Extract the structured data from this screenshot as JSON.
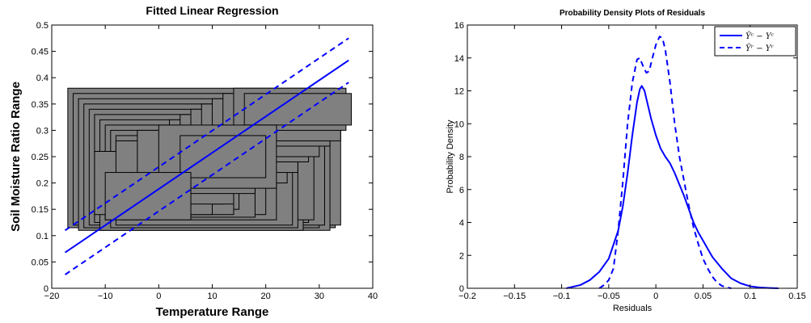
{
  "chart_data": [
    {
      "type": "scatter",
      "title": "Fitted Linear Regression",
      "xlabel": "Temperature Range",
      "ylabel": "Soil Moisture Ratio Range",
      "xlim": [
        -20,
        40
      ],
      "ylim": [
        0,
        0.5
      ],
      "xticks": [
        "−20",
        "−10",
        "0",
        "10",
        "20",
        "30",
        "40"
      ],
      "yticks": [
        "0",
        "0.05",
        "0.1",
        "0.15",
        "0.2",
        "0.25",
        "0.3",
        "0.35",
        "0.4",
        "0.45",
        "0.5"
      ],
      "grid": false,
      "rect_color": "#808080",
      "line_color": "#0000ff",
      "interval_rects": [
        [
          -17,
          33,
          0.115,
          0.38
        ],
        [
          -16,
          34,
          0.12,
          0.37
        ],
        [
          -15,
          32,
          0.11,
          0.36
        ],
        [
          -14,
          30,
          0.115,
          0.35
        ],
        [
          -13,
          31,
          0.12,
          0.34
        ],
        [
          -12,
          28,
          0.125,
          0.33
        ],
        [
          -11,
          27,
          0.11,
          0.32
        ],
        [
          -10,
          29,
          0.13,
          0.31
        ],
        [
          -9,
          26,
          0.115,
          0.3
        ],
        [
          -8,
          25,
          0.12,
          0.29
        ],
        [
          -7,
          22,
          0.13,
          0.28
        ],
        [
          -6,
          20,
          0.14,
          0.27
        ],
        [
          -5,
          18,
          0.135,
          0.26
        ],
        [
          -4,
          15,
          0.15,
          0.25
        ],
        [
          -3,
          14,
          0.14,
          0.24
        ],
        [
          -2,
          12,
          0.16,
          0.23
        ],
        [
          -1,
          10,
          0.15,
          0.22
        ],
        [
          0,
          8,
          0.17,
          0.21
        ],
        [
          2,
          24,
          0.2,
          0.32
        ],
        [
          4,
          26,
          0.22,
          0.33
        ],
        [
          6,
          28,
          0.24,
          0.34
        ],
        [
          8,
          30,
          0.25,
          0.35
        ],
        [
          10,
          32,
          0.27,
          0.36
        ],
        [
          12,
          34,
          0.28,
          0.37
        ],
        [
          14,
          35,
          0.3,
          0.38
        ],
        [
          16,
          36,
          0.31,
          0.37
        ],
        [
          -12,
          10,
          0.14,
          0.26
        ],
        [
          -8,
          14,
          0.16,
          0.28
        ],
        [
          -4,
          18,
          0.18,
          0.3
        ],
        [
          0,
          22,
          0.19,
          0.31
        ],
        [
          4,
          20,
          0.21,
          0.29
        ],
        [
          -10,
          6,
          0.13,
          0.22
        ]
      ],
      "series": [
        {
          "style": "solid",
          "x": [
            -17.5,
            35.5
          ],
          "y": [
            0.068,
            0.433
          ]
        },
        {
          "style": "dashed",
          "x": [
            -17.5,
            35.5
          ],
          "y": [
            0.11,
            0.475
          ]
        },
        {
          "style": "dashed",
          "x": [
            -17.5,
            35.5
          ],
          "y": [
            0.026,
            0.391
          ]
        }
      ]
    },
    {
      "type": "line",
      "title": "Probability Density Plots of Residuals",
      "xlabel": "Residuals",
      "ylabel": "Probability Density",
      "xlim": [
        -0.2,
        0.15
      ],
      "ylim": [
        0,
        16
      ],
      "xticks": [
        "−0.2",
        "−0.15",
        "−0.1",
        "−0.05",
        "0",
        "0.05",
        "0.1",
        "0.15"
      ],
      "yticks": [
        "0",
        "2",
        "4",
        "6",
        "8",
        "10",
        "12",
        "14",
        "16"
      ],
      "grid": false,
      "legend_position": "top-right",
      "line_color": "#0000ff",
      "series": [
        {
          "name": "Ŷᶜ − Yᶜ",
          "style": "solid",
          "x": [
            -0.095,
            -0.08,
            -0.07,
            -0.06,
            -0.05,
            -0.04,
            -0.035,
            -0.03,
            -0.025,
            -0.02,
            -0.017,
            -0.015,
            -0.012,
            -0.01,
            -0.005,
            0,
            0.005,
            0.01,
            0.015,
            0.02,
            0.025,
            0.03,
            0.035,
            0.04,
            0.045,
            0.05,
            0.055,
            0.06,
            0.07,
            0.08,
            0.09,
            0.1,
            0.11,
            0.12,
            0.13
          ],
          "y": [
            0,
            0.2,
            0.5,
            1.0,
            1.8,
            3.5,
            5.0,
            7.0,
            9.3,
            11.3,
            12.1,
            12.3,
            12.0,
            11.5,
            10.3,
            9.3,
            8.5,
            8.0,
            7.6,
            7.0,
            6.3,
            5.6,
            4.8,
            4.0,
            3.4,
            2.9,
            2.4,
            1.9,
            1.2,
            0.6,
            0.3,
            0.12,
            0.05,
            0.02,
            0
          ]
        },
        {
          "name": "Ŷʳ − Yʳ",
          "style": "dashed",
          "x": [
            -0.06,
            -0.055,
            -0.05,
            -0.045,
            -0.04,
            -0.035,
            -0.03,
            -0.025,
            -0.02,
            -0.017,
            -0.015,
            -0.012,
            -0.01,
            -0.007,
            -0.005,
            0,
            0.004,
            0.007,
            0.01,
            0.015,
            0.02,
            0.025,
            0.03,
            0.035,
            0.04,
            0.045,
            0.05,
            0.055,
            0.06,
            0.065,
            0.07,
            0.075,
            0.08
          ],
          "y": [
            0,
            0.2,
            0.5,
            1.2,
            3.5,
            6.5,
            10.0,
            12.5,
            13.9,
            14.0,
            13.7,
            13.3,
            13.1,
            13.2,
            13.7,
            14.8,
            15.3,
            15.2,
            14.5,
            12.5,
            10.0,
            8.0,
            6.5,
            5.0,
            3.7,
            2.7,
            1.8,
            1.2,
            0.7,
            0.35,
            0.15,
            0.05,
            0
          ]
        }
      ]
    }
  ]
}
